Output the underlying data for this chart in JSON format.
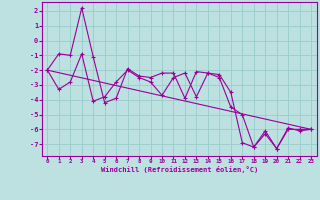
{
  "xlabel": "Windchill (Refroidissement éolien,°C)",
  "ylabel": "",
  "xlim": [
    -0.5,
    23.5
  ],
  "ylim": [
    -7.8,
    2.6
  ],
  "yticks": [
    2,
    1,
    0,
    -1,
    -2,
    -3,
    -4,
    -5,
    -6,
    -7
  ],
  "xticks": [
    0,
    1,
    2,
    3,
    4,
    5,
    6,
    7,
    8,
    9,
    10,
    11,
    12,
    13,
    14,
    15,
    16,
    17,
    18,
    19,
    20,
    21,
    22,
    23
  ],
  "bg_color": "#bde0e0",
  "grid_color": "#99cccc",
  "line_color": "#990099",
  "line1_y": [
    -2.0,
    -0.9,
    -1.0,
    2.2,
    -1.1,
    -4.2,
    -3.9,
    -1.9,
    -2.4,
    -2.5,
    -2.2,
    -2.2,
    -3.9,
    -2.1,
    -2.2,
    -2.3,
    -3.5,
    -6.9,
    -7.2,
    -6.3,
    -7.3,
    -6.0,
    -6.0,
    -6.0
  ],
  "line2_y": [
    -2.0,
    -3.3,
    -2.8,
    -0.9,
    -4.1,
    -3.8,
    -2.8,
    -2.0,
    -2.5,
    -2.8,
    -3.7,
    -2.5,
    -2.2,
    -3.8,
    -2.2,
    -2.5,
    -4.5,
    -5.0,
    -7.2,
    -6.1,
    -7.3,
    -5.9,
    -6.1,
    -6.0
  ],
  "line3_x": [
    0,
    23
  ],
  "line3_y": [
    -2.0,
    -6.0
  ]
}
